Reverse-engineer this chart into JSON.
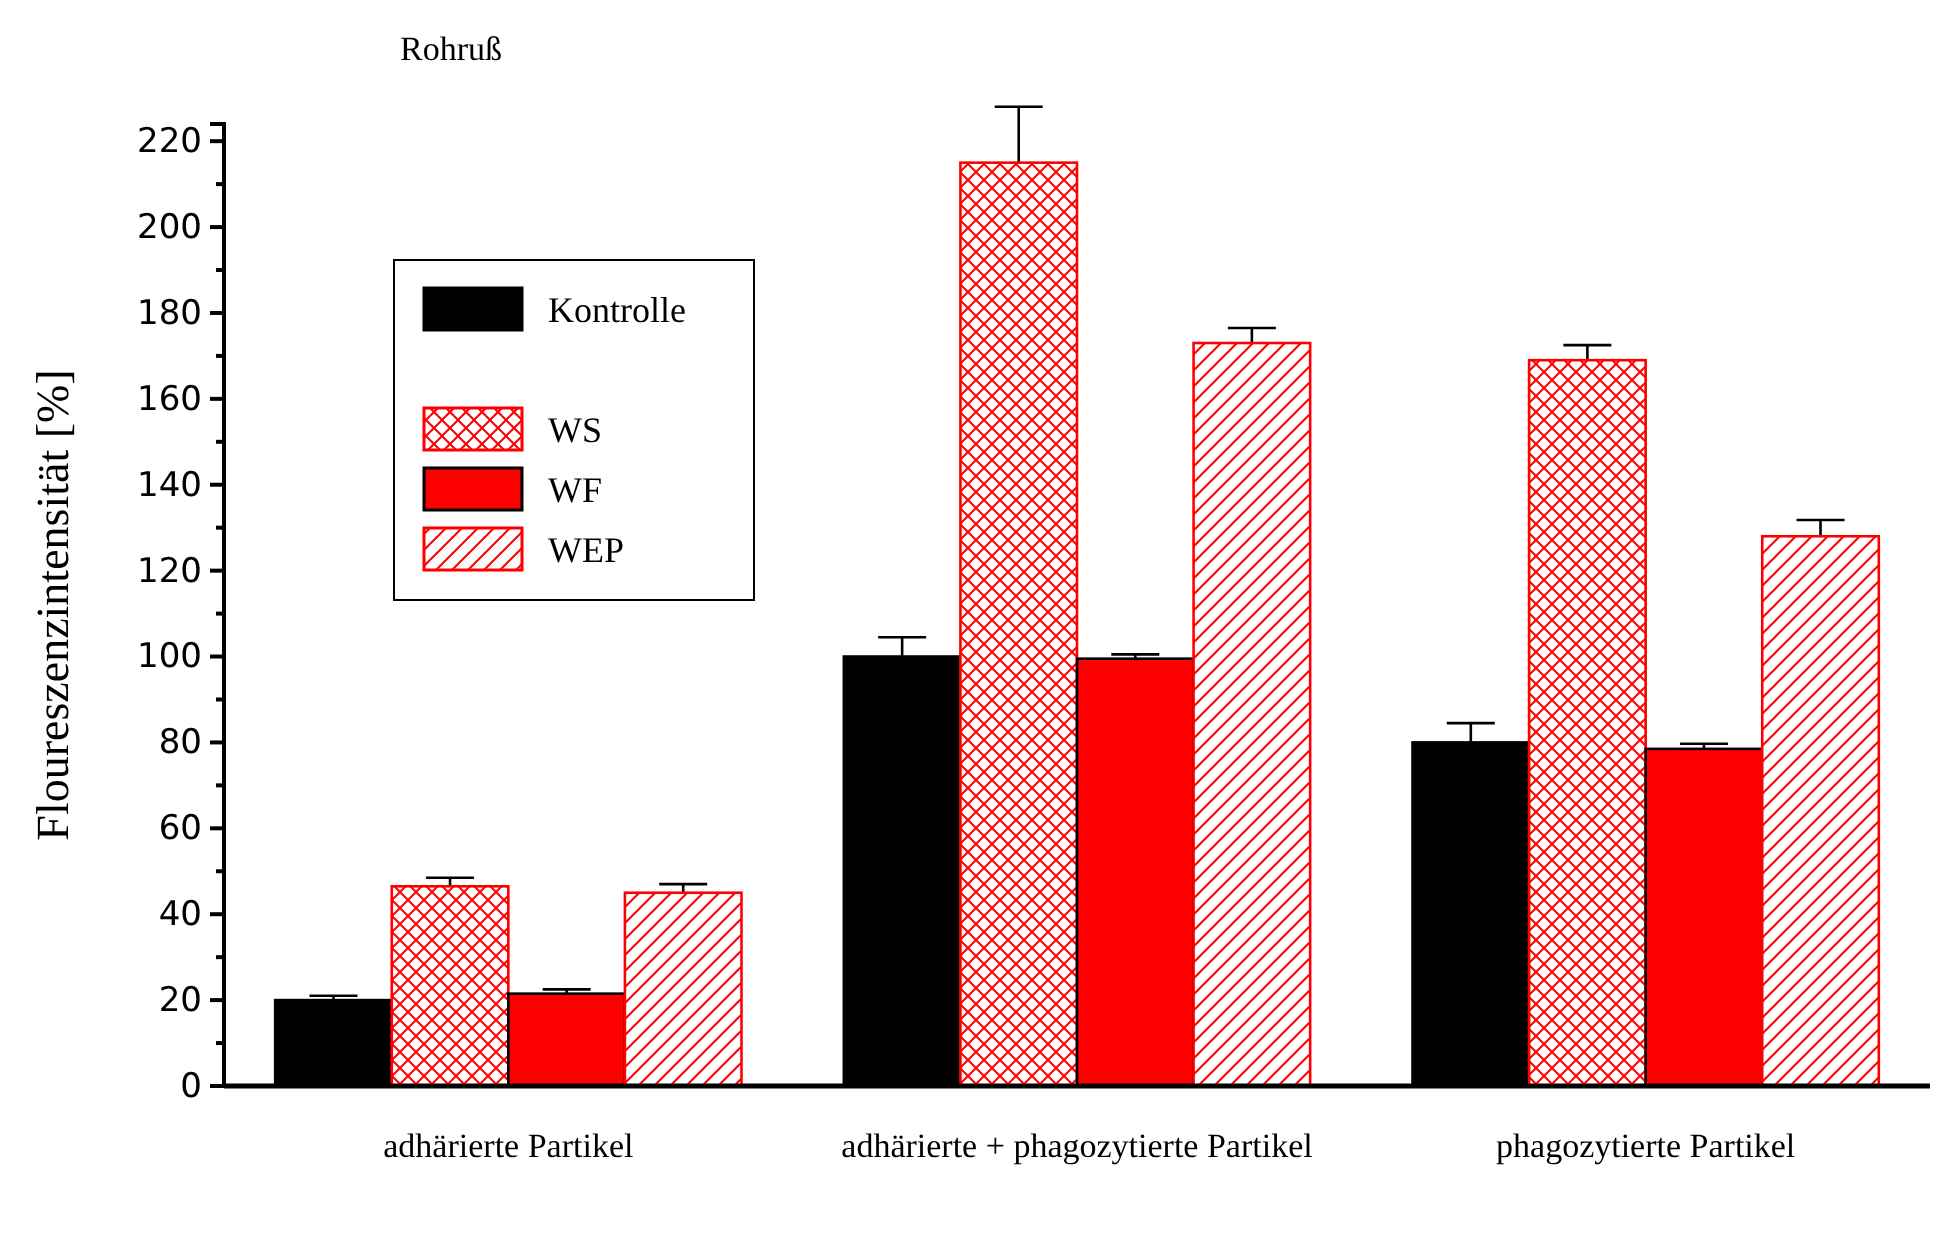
{
  "chart_data": {
    "type": "bar",
    "title": "Rohruß",
    "ylabel": "Floureszenzintensität [%]",
    "categories": [
      "adhärierte Partikel",
      "adhärierte + phagozytierte Partikel",
      "phagozytierte Partikel"
    ],
    "series": [
      {
        "name": "Kontrolle",
        "color": "#000000",
        "values": [
          20,
          100,
          80
        ],
        "errors": [
          1,
          4.5,
          4.5
        ]
      },
      {
        "name": "WS",
        "color": "#ff0000",
        "values": [
          46.5,
          215,
          169
        ],
        "errors": [
          2,
          13,
          3.5
        ]
      },
      {
        "name": "WF",
        "color": "#ff0000",
        "values": [
          21.5,
          99.5,
          78.5
        ],
        "errors": [
          1,
          1,
          1.2
        ]
      },
      {
        "name": "WEP",
        "color": "#ff0000",
        "values": [
          45,
          173,
          128
        ],
        "errors": [
          2,
          3.5,
          3.8
        ]
      }
    ],
    "ylim": [
      0,
      224
    ],
    "yticks": [
      0,
      20,
      40,
      60,
      80,
      100,
      120,
      140,
      160,
      180,
      200,
      220
    ],
    "grid": false,
    "legend": "top left"
  }
}
